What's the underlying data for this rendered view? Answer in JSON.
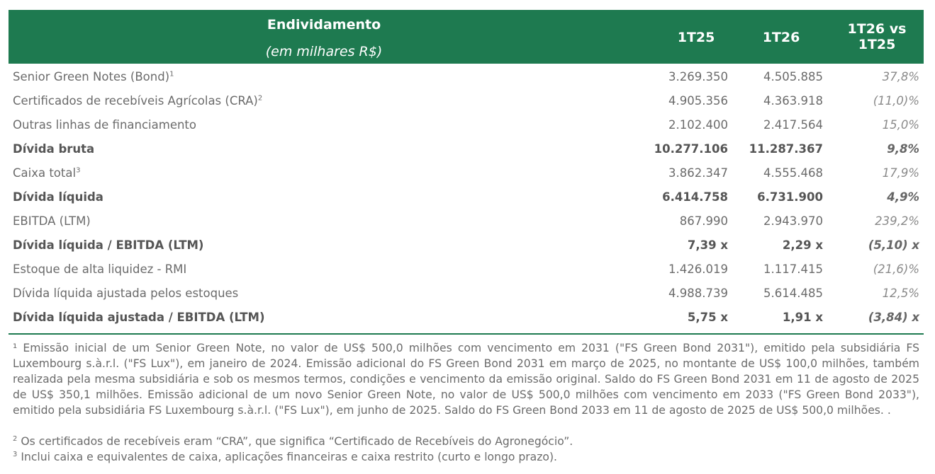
{
  "table": {
    "header": {
      "title": "Endividamento",
      "subtitle": "(em milhares R$)",
      "columns": [
        "1T25",
        "1T26",
        "1T26 vs 1T25"
      ]
    },
    "rows": [
      {
        "label": "Senior Green Notes (Bond)",
        "note": "1",
        "cells": [
          "3.269.350",
          "4.505.885",
          "37,8%"
        ],
        "bold": false
      },
      {
        "label": "Certificados de recebíveis Agrícolas (CRA)",
        "note": "2",
        "cells": [
          "4.905.356",
          "4.363.918",
          "(11,0)%"
        ],
        "bold": false
      },
      {
        "label": "Outras linhas de financiamento",
        "cells": [
          "2.102.400",
          "2.417.564",
          "15,0%"
        ],
        "bold": false
      },
      {
        "label": "Dívida bruta",
        "cells": [
          "10.277.106",
          "11.287.367",
          "9,8%"
        ],
        "bold": true
      },
      {
        "label": "Caixa total",
        "note": "3",
        "cells": [
          "3.862.347",
          "4.555.468",
          "17,9%"
        ],
        "bold": false
      },
      {
        "label": "Dívida líquida",
        "cells": [
          "6.414.758",
          "6.731.900",
          "4,9%"
        ],
        "bold": true
      },
      {
        "label": "EBITDA (LTM)",
        "cells": [
          "867.990",
          "2.943.970",
          "239,2%"
        ],
        "bold": false
      },
      {
        "label": "Dívida líquida / EBITDA (LTM)",
        "cells": [
          "7,39 x",
          "2,29 x",
          "(5,10) x"
        ],
        "bold": true
      },
      {
        "label": "Estoque de alta liquidez - RMI",
        "cells": [
          "1.426.019",
          "1.117.415",
          "(21,6)%"
        ],
        "bold": false
      },
      {
        "label": "Dívida líquida ajustada pelos estoques",
        "cells": [
          "4.988.739",
          "5.614.485",
          "12,5%"
        ],
        "bold": false
      },
      {
        "label": "Dívida líquida ajustada / EBITDA (LTM)",
        "cells": [
          "5,75 x",
          "1,91 x",
          "(3,84) x"
        ],
        "bold": true
      }
    ]
  },
  "footnotes": [
    {
      "marker": "¹",
      "text": "Emissão inicial de um Senior Green Note, no valor de US$ 500,0 milhões com vencimento em 2031 (\"FS Green Bond 2031\"), emitido pela subsidiária FS Luxembourg s.à.r.l. (\"FS Lux\"), em janeiro de 2024. Emissão adicional do FS Green Bond 2031 em março de 2025, no montante de US$ 100,0 milhões, também realizada pela mesma subsidiária e sob os mesmos termos, condições e vencimento da emissão original. Saldo do FS Green Bond 2031 em 11 de agosto de 2025 de US$ 350,1 milhões. Emissão adicional de um novo Senior Green Note, no valor de US$ 500,0 milhões com vencimento em 2033 (\"FS Green Bond 2033\"), emitido pela subsidiária FS Luxembourg s.à.r.l. (\"FS Lux\"), em junho de 2025. Saldo do FS Green Bond 2033 em 11 de agosto de 2025 de US$ 500,0 milhões. ."
    },
    {
      "marker": "2",
      "text": "Os certificados de recebíveis eram “CRA”, que significa “Certificado de Recebíveis do Agronegócio”."
    },
    {
      "marker": "3",
      "text": " Inclui caixa e equivalentes de caixa, aplicações financeiras e caixa restrito (curto e longo prazo)."
    }
  ]
}
